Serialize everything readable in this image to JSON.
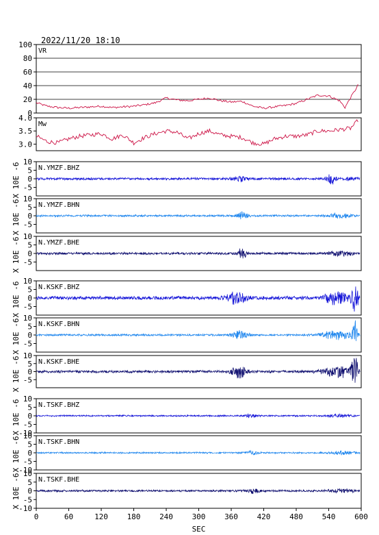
{
  "header": {
    "timestamp": "2022/11/20  18:10"
  },
  "colors": {
    "vr": "#cc1144",
    "mw": "#cc1144",
    "blue": "#1515d8",
    "light": "#2288ee",
    "navy": "#101070",
    "frame": "#000000",
    "grid": "#000000"
  },
  "chart_data": [
    {
      "type": "line",
      "label": "VR",
      "ylim": [
        0,
        100
      ],
      "yticks": [
        {
          "v": 0,
          "t": "0"
        },
        {
          "v": 20,
          "t": "20"
        },
        {
          "v": 40,
          "t": "40"
        },
        {
          "v": 60,
          "t": "60"
        },
        {
          "v": 80,
          "t": "80"
        },
        {
          "v": 100,
          "t": "100"
        }
      ],
      "grid": true,
      "x": [
        0,
        20,
        40,
        60,
        80,
        100,
        120,
        140,
        160,
        180,
        200,
        220,
        240,
        260,
        280,
        300,
        320,
        340,
        360,
        380,
        400,
        420,
        440,
        460,
        480,
        500,
        520,
        540,
        560,
        570,
        580,
        590,
        595
      ],
      "y": [
        15,
        10,
        8,
        7,
        8,
        9,
        10,
        8,
        9,
        10,
        12,
        15,
        22,
        19,
        18,
        20,
        22,
        18,
        16,
        17,
        10,
        7,
        9,
        11,
        14,
        20,
        26,
        25,
        18,
        8,
        22,
        35,
        42
      ]
    },
    {
      "type": "line",
      "label": "Mw",
      "ylim": [
        2.75,
        4.0
      ],
      "yticks": [
        {
          "v": 3.0,
          "t": "3.0"
        },
        {
          "v": 3.5,
          "t": "3.5"
        },
        {
          "v": 4.0,
          "t": "4.0"
        }
      ],
      "grid": false,
      "x": [
        0,
        20,
        40,
        60,
        80,
        100,
        120,
        140,
        160,
        180,
        200,
        220,
        240,
        260,
        280,
        300,
        320,
        340,
        360,
        380,
        400,
        420,
        440,
        460,
        480,
        500,
        520,
        540,
        560,
        580,
        590,
        595
      ],
      "y": [
        3.3,
        3.1,
        3.05,
        3.2,
        3.3,
        3.35,
        3.4,
        3.2,
        3.35,
        3.05,
        3.25,
        3.4,
        3.5,
        3.45,
        3.2,
        3.4,
        3.5,
        3.35,
        3.3,
        3.25,
        3.05,
        3.0,
        3.2,
        3.3,
        3.3,
        3.35,
        3.5,
        3.5,
        3.55,
        3.6,
        3.8,
        3.95
      ]
    },
    {
      "type": "line",
      "label": "N.YMZF.BHZ",
      "color": "blue",
      "ylim": [
        -10,
        10
      ],
      "yticks": [
        {
          "v": -5,
          "t": "-5"
        },
        {
          "v": 0,
          "t": "0"
        },
        {
          "v": 5,
          "t": "5"
        },
        {
          "v": 10,
          "t": "10"
        }
      ],
      "bursts": [
        [
          375,
          18,
          1.0
        ],
        [
          545,
          10,
          2.6
        ],
        [
          575,
          20,
          0.6
        ]
      ],
      "noise": 0.6
    },
    {
      "type": "line",
      "label": "N.YMZF.BHN",
      "color": "light",
      "ylim": [
        -10,
        10
      ],
      "yticks": [
        {
          "v": -5,
          "t": "-5"
        },
        {
          "v": 0,
          "t": "0"
        },
        {
          "v": 5,
          "t": "5"
        },
        {
          "v": 10,
          "t": "10"
        }
      ],
      "bursts": [
        [
          380,
          15,
          1.8
        ],
        [
          560,
          30,
          1.0
        ]
      ],
      "noise": 0.5
    },
    {
      "type": "line",
      "label": "N.YMZF.BHE",
      "color": "navy",
      "ylim": [
        -10,
        10
      ],
      "yticks": [
        {
          "v": -5,
          "t": "-5"
        },
        {
          "v": 0,
          "t": "0"
        },
        {
          "v": 5,
          "t": "5"
        },
        {
          "v": 10,
          "t": "10"
        }
      ],
      "bursts": [
        [
          380,
          12,
          2.4
        ],
        [
          565,
          30,
          1.2
        ]
      ],
      "noise": 0.6
    },
    {
      "type": "line",
      "label": "N.KSKF.BHZ",
      "color": "blue",
      "ylim": [
        -10,
        10
      ],
      "yticks": [
        {
          "v": -5,
          "t": "-5"
        },
        {
          "v": 0,
          "t": "0"
        },
        {
          "v": 5,
          "t": "5"
        },
        {
          "v": 10,
          "t": "10"
        }
      ],
      "bursts": [
        [
          370,
          25,
          2.8
        ],
        [
          555,
          35,
          3.0
        ],
        [
          588,
          8,
          8.0
        ]
      ],
      "noise": 0.9
    },
    {
      "type": "line",
      "label": "N.KSKF.BHN",
      "color": "light",
      "ylim": [
        -10,
        10
      ],
      "yticks": [
        {
          "v": -5,
          "t": "-5"
        },
        {
          "v": 0,
          "t": "0"
        },
        {
          "v": 5,
          "t": "5"
        },
        {
          "v": 10,
          "t": "10"
        }
      ],
      "bursts": [
        [
          375,
          20,
          2.0
        ],
        [
          555,
          35,
          2.5
        ],
        [
          588,
          6,
          9.0
        ]
      ],
      "noise": 0.5
    },
    {
      "type": "line",
      "label": "N.KSKF.BHE",
      "color": "navy",
      "ylim": [
        -10,
        10
      ],
      "yticks": [
        {
          "v": -5,
          "t": "-5"
        },
        {
          "v": 0,
          "t": "0"
        },
        {
          "v": 5,
          "t": "5"
        },
        {
          "v": 10,
          "t": "10"
        }
      ],
      "bursts": [
        [
          375,
          20,
          3.0
        ],
        [
          555,
          35,
          3.2
        ],
        [
          588,
          8,
          8.5
        ]
      ],
      "noise": 0.7
    },
    {
      "type": "line",
      "label": "N.TSKF.BHZ",
      "color": "blue",
      "ylim": [
        -10,
        10
      ],
      "yticks": [
        {
          "v": -10,
          "t": "-10"
        },
        {
          "v": -5,
          "t": "-5"
        },
        {
          "v": 0,
          "t": "0"
        },
        {
          "v": 5,
          "t": "5"
        },
        {
          "v": 10,
          "t": "10"
        }
      ],
      "bursts": [
        [
          395,
          15,
          0.8
        ],
        [
          560,
          30,
          0.7
        ]
      ],
      "noise": 0.4
    },
    {
      "type": "line",
      "label": "N.TSKF.BHN",
      "color": "light",
      "ylim": [
        -10,
        10
      ],
      "yticks": [
        {
          "v": -10,
          "t": "-10"
        },
        {
          "v": -5,
          "t": "-5"
        },
        {
          "v": 0,
          "t": "0"
        },
        {
          "v": 5,
          "t": "5"
        },
        {
          "v": 10,
          "t": "10"
        }
      ],
      "bursts": [
        [
          395,
          20,
          0.9
        ],
        [
          565,
          30,
          0.8
        ]
      ],
      "noise": 0.4
    },
    {
      "type": "line",
      "label": "N.TSKF.BHE",
      "color": "navy",
      "ylim": [
        -10,
        10
      ],
      "yticks": [
        {
          "v": -10,
          "t": "-10"
        },
        {
          "v": -5,
          "t": "-5"
        },
        {
          "v": 0,
          "t": "0"
        },
        {
          "v": 5,
          "t": "5"
        },
        {
          "v": 10,
          "t": "10"
        }
      ],
      "bursts": [
        [
          400,
          15,
          1.2
        ],
        [
          565,
          30,
          0.8
        ]
      ],
      "noise": 0.5
    }
  ],
  "x_axis": {
    "xlim": [
      0,
      600
    ],
    "ticks": [
      {
        "v": 0,
        "t": "0"
      },
      {
        "v": 60,
        "t": "60"
      },
      {
        "v": 120,
        "t": "120"
      },
      {
        "v": 180,
        "t": "180"
      },
      {
        "v": 240,
        "t": "240"
      },
      {
        "v": 300,
        "t": "300"
      },
      {
        "v": 360,
        "t": "360"
      },
      {
        "v": 420,
        "t": "420"
      },
      {
        "v": 480,
        "t": "480"
      },
      {
        "v": 540,
        "t": "540"
      },
      {
        "v": 600,
        "t": "600"
      }
    ],
    "label": "SEC"
  },
  "side_labels": [
    {
      "text": "X 10E -6",
      "group": 0
    },
    {
      "text": "X 10E -6",
      "group": 1
    },
    {
      "text": "X 10E -6",
      "group": 2
    },
    {
      "text": "X 10E -6",
      "group": 3
    },
    {
      "text": "X 10E -6",
      "group": 4
    },
    {
      "text": "X 10E -6",
      "group": 5
    },
    {
      "text": "X 10E -6",
      "group": 6
    },
    {
      "text": "X 10E -6",
      "group": 7
    },
    {
      "text": "X 10E -6",
      "group": 8
    }
  ]
}
